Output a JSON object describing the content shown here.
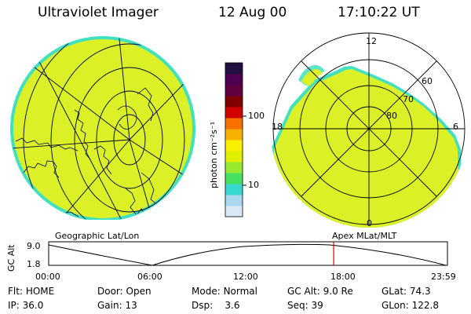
{
  "header": {
    "title": "Ultraviolet Imager",
    "date": "12 Aug 00",
    "time": "17:10:22 UT"
  },
  "colorbar": {
    "unit_label": "photon cm⁻²s⁻¹",
    "ticks": [
      "100",
      "10"
    ],
    "colors": [
      "#d8e8f4",
      "#a8d8f0",
      "#38d8d0",
      "#48e060",
      "#98e830",
      "#e0f000",
      "#f8f000",
      "#f8b000",
      "#f87000",
      "#d00000",
      "#800000",
      "#600040",
      "#500050",
      "#201040"
    ]
  },
  "left_map": {
    "caption": "Geographic Lat/Lon",
    "fill_color": "#dcf028",
    "rim_color": "#40e0c0"
  },
  "right_map": {
    "caption": "Apex MLat/MLT",
    "labels": {
      "top": "12",
      "bottom": "0",
      "left": "18",
      "right": "6"
    },
    "lat_labels": [
      "60",
      "70",
      "80"
    ]
  },
  "timeline": {
    "ylabel": "GC Alt",
    "yticks": [
      "9.0",
      "1.8"
    ],
    "xticks": [
      "00:00",
      "06:00",
      "12:00",
      "18:00",
      "23:59"
    ],
    "marker_time": "17:10",
    "marker_color": "#e00000"
  },
  "info": {
    "row1": [
      {
        "label": "Flt:",
        "value": "HOME"
      },
      {
        "label": "Door:",
        "value": "Open"
      },
      {
        "label": "Mode:",
        "value": "Normal"
      },
      {
        "label": "GC Alt:",
        "value": "9.0 Re"
      },
      {
        "label": "GLat:",
        "value": "74.3"
      }
    ],
    "row2": [
      {
        "label": "IP:",
        "value": "36.0"
      },
      {
        "label": "Gain:",
        "value": "13"
      },
      {
        "label": "Dsp:",
        "value": "3.6"
      },
      {
        "label": "Seq:",
        "value": "39"
      },
      {
        "label": "GLon:",
        "value": "122.8"
      }
    ]
  }
}
